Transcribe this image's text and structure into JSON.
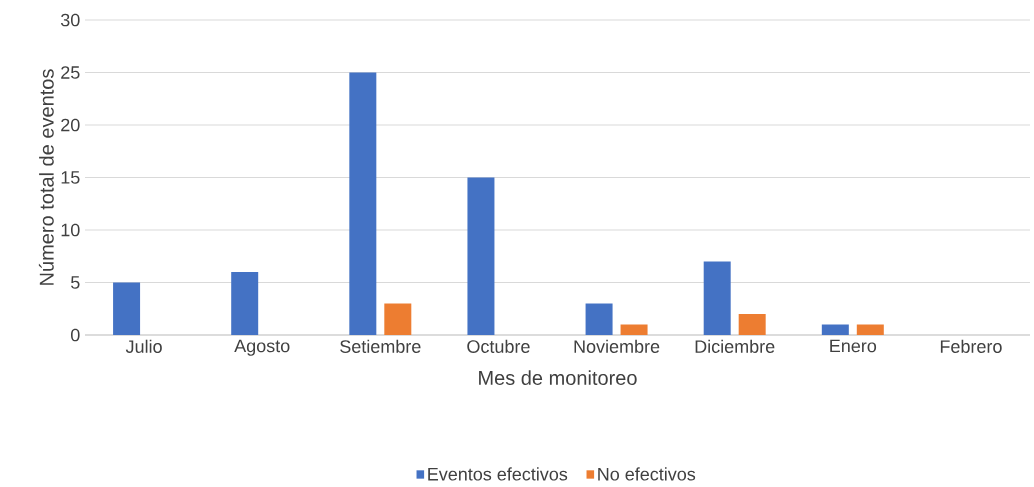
{
  "chart_data": {
    "type": "bar",
    "xlabel": "Mes de monitoreo",
    "ylabel": "Número total de  eventos",
    "categories": [
      "Julio",
      "Agosto",
      "Setiembre",
      "Octubre",
      "Noviembre",
      "Diciembre",
      "Enero",
      "Febrero"
    ],
    "series": [
      {
        "name": "Eventos efectivos",
        "color": "#4472c4",
        "values": [
          5,
          6,
          25,
          15,
          3,
          7,
          1,
          0
        ]
      },
      {
        "name": "No efectivos",
        "color": "#ed7d31",
        "values": [
          0,
          0,
          3,
          0,
          1,
          2,
          1,
          0
        ]
      }
    ],
    "ylim": [
      0,
      30
    ],
    "yticks": [
      0,
      5,
      10,
      15,
      20,
      25,
      30
    ],
    "grid": "y",
    "legend": "bottom"
  }
}
